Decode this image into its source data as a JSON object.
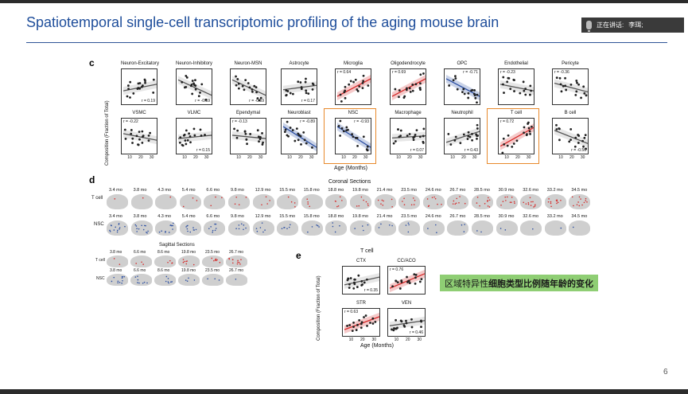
{
  "slide": {
    "title": "Spatiotemporal single-cell transcriptomic profiling of the aging mouse brain",
    "page_number": "6"
  },
  "meeting": {
    "speaking_label": "正在讲话:",
    "speaker_name": "李珥;"
  },
  "panel_c": {
    "letter": "c",
    "y_axis_label": "Composition (Fraction of Total)",
    "x_axis_label": "Age (Months)",
    "x_ticks": [
      "10",
      "20",
      "30"
    ],
    "plots": [
      {
        "title": "Neuron-Excitatory",
        "r": "r = 0.19",
        "color": "#555555",
        "slope": 0.3,
        "highlight": false
      },
      {
        "title": "Neuron-Inhibitory",
        "r": "r = -0.59",
        "color": "#555555",
        "slope": -0.7,
        "highlight": false
      },
      {
        "title": "Neuron-MSN",
        "r": "r = -0.59",
        "color": "#555555",
        "slope": -0.7,
        "highlight": false
      },
      {
        "title": "Astrocyte",
        "r": "r = 0.17",
        "color": "#555555",
        "slope": 0.2,
        "highlight": false
      },
      {
        "title": "Microglia",
        "r": "r = 0.64",
        "color": "#d62b2b",
        "slope": 0.8,
        "highlight": false
      },
      {
        "title": "Oligodendrocyte",
        "r": "r = 0.69",
        "color": "#d62b2b",
        "slope": 0.8,
        "highlight": false
      },
      {
        "title": "OPC",
        "r": "r = -0.71",
        "color": "#2b4fa3",
        "slope": -0.8,
        "highlight": false
      },
      {
        "title": "Endothelial",
        "r": "r = -0.23",
        "color": "#555555",
        "slope": -0.3,
        "highlight": false
      },
      {
        "title": "Pericyte",
        "r": "r = -0.36",
        "color": "#555555",
        "slope": -0.4,
        "highlight": false
      },
      {
        "title": "VSMC",
        "r": "r = -0.22",
        "color": "#555555",
        "slope": -0.3,
        "highlight": false
      },
      {
        "title": "VLMC",
        "r": "r = 0.15",
        "color": "#555555",
        "slope": 0.15,
        "highlight": false
      },
      {
        "title": "Ependymal",
        "r": "r = -0.13",
        "color": "#555555",
        "slope": -0.15,
        "highlight": false
      },
      {
        "title": "Neuroblast",
        "r": "r = -0.89",
        "color": "#2b4fa3",
        "slope": -0.95,
        "highlight": false
      },
      {
        "title": "NSC",
        "r": "r = -0.93",
        "color": "#2b4fa3",
        "slope": -0.95,
        "highlight": true
      },
      {
        "title": "Macrophage",
        "r": "r = 0.07",
        "color": "#555555",
        "slope": 0.1,
        "highlight": false
      },
      {
        "title": "Neutrophil",
        "r": "r = 0.43",
        "color": "#555555",
        "slope": 0.5,
        "highlight": false
      },
      {
        "title": "T cell",
        "r": "r = 0.72",
        "color": "#d62b2b",
        "slope": 0.85,
        "highlight": true
      },
      {
        "title": "B cell",
        "r": "r = -0.56",
        "color": "#555555",
        "slope": -0.6,
        "highlight": false
      }
    ]
  },
  "panel_d": {
    "letter": "d",
    "coronal_title": "Coronal Sections",
    "coronal_ages": [
      "3.4 mo",
      "3.8 mo",
      "4.3 mo",
      "5.4 mo",
      "6.6 mo",
      "9.8 mo",
      "12.9 mo",
      "15.5 mo",
      "15.8 mo",
      "18.8 mo",
      "19.8 mo",
      "21.4 mo",
      "23.5 mo",
      "24.6 mo",
      "26.7 mo",
      "28.5 mo",
      "30.9 mo",
      "32.6 mo",
      "33.2 mo",
      "34.5 mo"
    ],
    "tcell_label": "T cell",
    "nsc_label": "NSC",
    "tcell_density": [
      0.1,
      0.1,
      0.1,
      0.2,
      0.2,
      0.25,
      0.3,
      0.3,
      0.3,
      0.45,
      0.5,
      0.5,
      0.5,
      0.55,
      0.6,
      0.7,
      0.7,
      0.75,
      0.8,
      0.85
    ],
    "nsc_density": [
      0.9,
      0.85,
      0.8,
      0.7,
      0.6,
      0.5,
      0.45,
      0.4,
      0.35,
      0.3,
      0.3,
      0.25,
      0.25,
      0.2,
      0.2,
      0.15,
      0.15,
      0.1,
      0.1,
      0.05
    ],
    "sagittal_title": "Sagittal Sections",
    "sagittal_ages": [
      "3.8 mo",
      "6.6 mo",
      "8.6 mo",
      "19.8 mo",
      "23.5 mo",
      "26.7 mo"
    ],
    "sagittal_tcell_density": [
      0.15,
      0.2,
      0.3,
      0.5,
      0.6,
      0.75
    ],
    "sagittal_nsc_density": [
      0.8,
      0.6,
      0.5,
      0.3,
      0.2,
      0.1
    ]
  },
  "panel_e": {
    "letter": "e",
    "title": "T cell",
    "y_axis_label": "Composition (Fraction of Total)",
    "x_axis_label": "Age (Months)",
    "x_ticks": [
      "10",
      "20",
      "30"
    ],
    "plots": [
      {
        "title": "CTX",
        "r": "r = 0.35",
        "color": "#555555",
        "slope": 0.45
      },
      {
        "title": "CC/ACO",
        "r": "r = 0.76",
        "color": "#d62b2b",
        "slope": 0.85
      },
      {
        "title": "STR",
        "r": "r = 0.63",
        "color": "#d62b2b",
        "slope": 0.75
      },
      {
        "title": "VEN",
        "r": "r = 0.46",
        "color": "#555555",
        "slope": 0.3
      }
    ]
  },
  "banner": {
    "prefix": "区域特异性",
    "bold_text": "细胞类型比例随年龄的变化"
  },
  "colors": {
    "title_blue": "#1f4e9b",
    "highlight_orange": "#e8892b",
    "banner_green": "#8fce74",
    "brain_gray": "#cfcfcf",
    "tcell_red": "#d62b2b",
    "nsc_blue": "#2b4fa3"
  }
}
